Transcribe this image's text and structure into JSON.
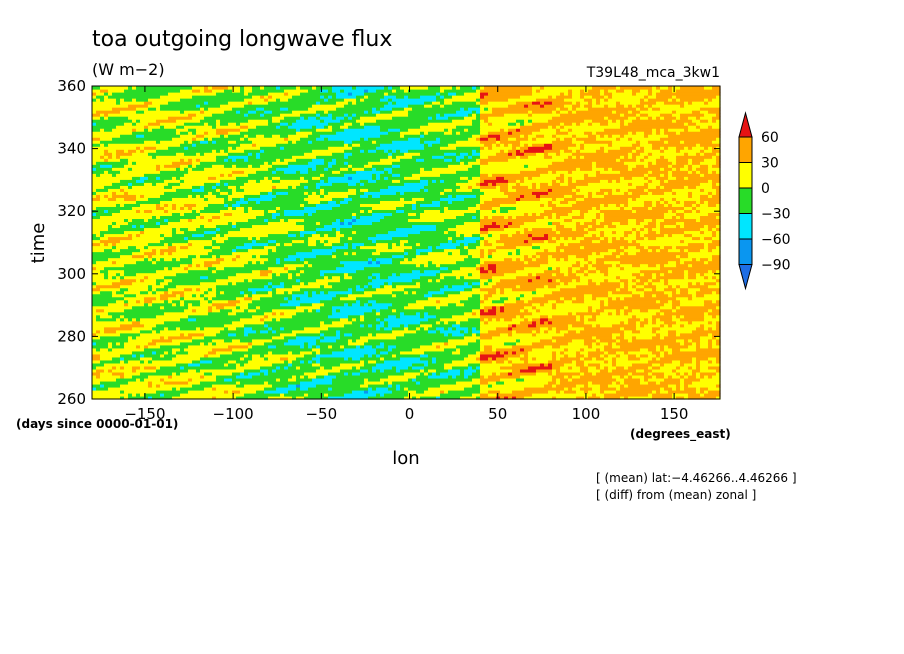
{
  "chart_data": {
    "type": "heatmap",
    "title": "toa outgoing longwave flux",
    "subtitle": "(W m−2)",
    "run_label": "T39L48_mca_3kw1",
    "xlabel": "lon",
    "ylabel": "time",
    "x_units": "(degrees_east)",
    "y_units": "(days since 0000-01-01)",
    "xlim": [
      -180,
      176
    ],
    "ylim": [
      260,
      360
    ],
    "x_ticks": [
      -150,
      -100,
      -50,
      0,
      50,
      100,
      150
    ],
    "y_ticks": [
      260,
      280,
      300,
      320,
      340,
      360
    ],
    "x_tick_labels": [
      "−150",
      "−100",
      "−50",
      "0",
      "50",
      "100",
      "150"
    ],
    "y_tick_labels": [
      "260",
      "280",
      "300",
      "320",
      "340",
      "360"
    ],
    "colorbar": {
      "levels": [
        -90,
        -60,
        -30,
        0,
        30,
        60
      ],
      "level_labels": [
        "−90",
        "−60",
        "−30",
        "0",
        "30",
        "60"
      ],
      "colors": [
        "#1e6ee6",
        "#0a96f0",
        "#00e6ff",
        "#28dc28",
        "#ffff00",
        "#ffa500",
        "#e61414"
      ]
    },
    "notes": [
      "[ (mean) lat:−4.46266..4.46266 ]",
      "[ (diff) from (mean) zonal ]"
    ]
  }
}
